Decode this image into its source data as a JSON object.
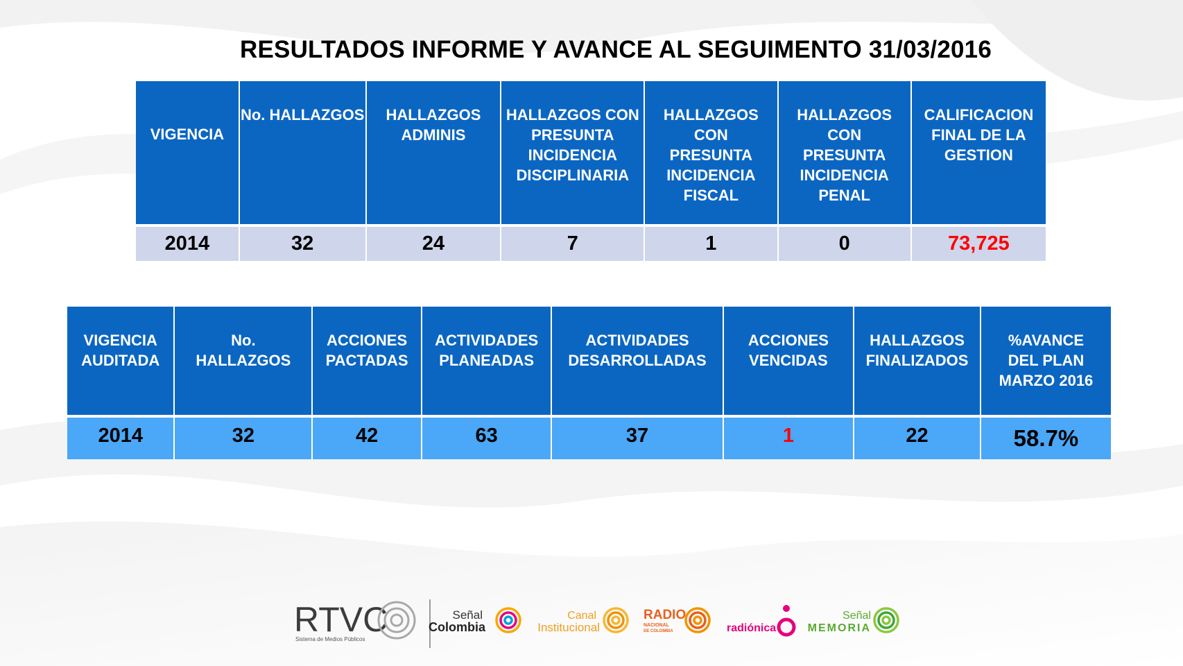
{
  "title": "RESULTADOS INFORME  Y AVANCE AL SEGUIMENTO 31/03/2016",
  "table1": {
    "headers": [
      "VIGENCIA",
      "No. HALLAZGOS",
      "HALLAZGOS ADMINIS",
      "HALLAZGOS CON PRESUNTA INCIDENCIA DISCIPLINARIA",
      "HALLAZGOS CON PRESUNTA INCIDENCIA FISCAL",
      "HALLAZGOS CON PRESUNTA INCIDENCIA PENAL",
      "CALIFICACION FINAL DE LA GESTION"
    ],
    "row": [
      "2014",
      "32",
      "24",
      "7",
      "1",
      "0",
      "73,725"
    ]
  },
  "table2": {
    "headers": [
      "VIGENCIA AUDITADA",
      "No. HALLAZGOS",
      "ACCIONES PACTADAS",
      "ACTIVIDADES PLANEADAS",
      "ACTIVIDADES DESARROLLADAS",
      "ACCIONES VENCIDAS",
      "HALLAZGOS FINALIZADOS",
      "%AVANCE DEL PLAN MARZO 2016"
    ],
    "row": [
      "2014",
      "32",
      "42",
      "63",
      "37",
      "1",
      "22",
      "58.7%"
    ]
  },
  "footer": {
    "logos": {
      "rtvc": "RTVC",
      "rtvc_tagline": "Sistema de Medios Públicos",
      "senal_colombia": [
        "Señal",
        "Colombia"
      ],
      "canal_institucional": [
        "Canal",
        "Institucional"
      ],
      "radio_nacional": [
        "RADIO",
        "NACIONAL",
        "DE COLOMBIA"
      ],
      "radionica": "radiónica",
      "senal_memoria": [
        "Señal",
        "MEMORIA"
      ]
    }
  },
  "colors": {
    "header_blue": "#0b66c2",
    "row1_bg": "#cfd5ea",
    "row2_bg": "#4ba7f7",
    "highlight_red": "#ff0000"
  }
}
